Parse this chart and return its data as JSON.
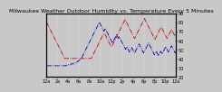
{
  "title": "Milwaukee Weather Outdoor Humidity vs. Temperature Every 5 Minutes",
  "bg_color": "#c8c8c8",
  "plot_bg": "#c8c8c8",
  "grid_color": "#ffffff",
  "humidity_color": "#0000bb",
  "temp_color": "#cc0000",
  "xlim": [
    0,
    288
  ],
  "temp_ylim": [
    20,
    90
  ],
  "hum_ylim": [
    20,
    90
  ],
  "temp_data": [
    80,
    79,
    78,
    77,
    76,
    75,
    74,
    73,
    72,
    71,
    70,
    69,
    68,
    67,
    66,
    65,
    64,
    63,
    62,
    61,
    60,
    59,
    58,
    57,
    56,
    55,
    54,
    53,
    52,
    51,
    50,
    49,
    48,
    47,
    46,
    45,
    44,
    43,
    42,
    41,
    40,
    40,
    40,
    40,
    40,
    40,
    40,
    40,
    40,
    40,
    40,
    40,
    40,
    40,
    40,
    40,
    40,
    40,
    40,
    40,
    40,
    40,
    40,
    40,
    40,
    40,
    40,
    40,
    40,
    40,
    40,
    40,
    40,
    40,
    40,
    40,
    40,
    40,
    40,
    40,
    40,
    40,
    40,
    40,
    40,
    40,
    40,
    40,
    40,
    40,
    40,
    40,
    40,
    40,
    40,
    40,
    40,
    40,
    40,
    40,
    41,
    42,
    43,
    44,
    45,
    46,
    47,
    48,
    49,
    50,
    51,
    52,
    53,
    54,
    55,
    56,
    57,
    58,
    59,
    60,
    61,
    62,
    63,
    64,
    65,
    66,
    67,
    67,
    67,
    67,
    66,
    65,
    64,
    63,
    62,
    61,
    60,
    59,
    58,
    57,
    56,
    55,
    54,
    53,
    53,
    54,
    55,
    56,
    57,
    58,
    59,
    60,
    61,
    62,
    63,
    64,
    65,
    66,
    67,
    68,
    69,
    70,
    71,
    72,
    73,
    74,
    75,
    76,
    77,
    78,
    79,
    80,
    81,
    82,
    83,
    82,
    81,
    80,
    79,
    78,
    77,
    76,
    75,
    74,
    73,
    72,
    71,
    70,
    69,
    68,
    67,
    66,
    65,
    64,
    63,
    62,
    63,
    64,
    65,
    66,
    67,
    68,
    69,
    70,
    71,
    72,
    73,
    74,
    75,
    76,
    77,
    78,
    79,
    80,
    81,
    82,
    83,
    84,
    83,
    82,
    81,
    80,
    79,
    78,
    77,
    76,
    75,
    74,
    73,
    72,
    71,
    70,
    69,
    68,
    67,
    66,
    65,
    64,
    63,
    62,
    61,
    62,
    63,
    64,
    65,
    66,
    67,
    68,
    69,
    70,
    71,
    72,
    73,
    74,
    75,
    74,
    73,
    72,
    71,
    70,
    69,
    68,
    67,
    66,
    65,
    64,
    63,
    62,
    63,
    64,
    65,
    66,
    67,
    68,
    69,
    70,
    71,
    72,
    71,
    70,
    69,
    68,
    67,
    66,
    65,
    66,
    67,
    68
  ],
  "humidity_data": [
    32,
    32,
    32,
    32,
    32,
    32,
    32,
    32,
    32,
    32,
    32,
    32,
    32,
    32,
    32,
    32,
    32,
    32,
    32,
    32,
    32,
    32,
    32,
    32,
    32,
    32,
    32,
    32,
    32,
    32,
    32,
    32,
    32,
    32,
    32,
    32,
    32,
    32,
    32,
    32,
    32,
    32,
    32,
    32,
    32,
    33,
    33,
    33,
    33,
    33,
    33,
    33,
    33,
    33,
    34,
    34,
    34,
    34,
    34,
    34,
    35,
    35,
    35,
    35,
    35,
    36,
    36,
    36,
    36,
    37,
    37,
    37,
    38,
    38,
    39,
    39,
    40,
    40,
    41,
    42,
    43,
    44,
    45,
    46,
    47,
    48,
    49,
    50,
    51,
    52,
    53,
    54,
    55,
    56,
    57,
    58,
    59,
    60,
    61,
    62,
    63,
    64,
    65,
    66,
    67,
    68,
    69,
    70,
    71,
    72,
    73,
    74,
    75,
    76,
    77,
    78,
    79,
    80,
    79,
    78,
    77,
    76,
    75,
    74,
    73,
    72,
    71,
    70,
    71,
    72,
    73,
    72,
    71,
    70,
    69,
    68,
    67,
    66,
    65,
    64,
    63,
    62,
    61,
    60,
    59,
    58,
    57,
    58,
    59,
    60,
    61,
    62,
    63,
    64,
    65,
    66,
    65,
    64,
    63,
    62,
    63,
    64,
    63,
    62,
    61,
    60,
    59,
    58,
    57,
    56,
    55,
    54,
    53,
    52,
    51,
    50,
    51,
    52,
    53,
    52,
    51,
    50,
    49,
    48,
    47,
    48,
    49,
    50,
    51,
    52,
    51,
    50,
    49,
    48,
    47,
    46,
    47,
    48,
    49,
    50,
    51,
    52,
    53,
    54,
    55,
    56,
    55,
    54,
    53,
    52,
    51,
    50,
    49,
    48,
    47,
    46,
    47,
    48,
    49,
    50,
    51,
    52,
    53,
    54,
    55,
    56,
    57,
    56,
    55,
    54,
    53,
    52,
    51,
    50,
    49,
    48,
    47,
    46,
    45,
    44,
    45,
    46,
    47,
    48,
    47,
    46,
    45,
    44,
    43,
    44,
    45,
    46,
    47,
    48,
    47,
    46,
    45,
    46,
    47,
    48,
    49,
    50,
    51,
    52,
    53,
    52,
    51,
    50,
    49,
    48,
    47,
    48,
    49,
    50,
    51,
    52,
    53,
    54,
    53,
    52,
    51,
    50,
    49,
    48,
    47,
    46,
    47,
    46
  ],
  "xtick_positions": [
    0,
    24,
    48,
    72,
    96,
    120,
    144,
    168,
    192,
    216,
    240,
    264,
    288
  ],
  "xtick_labels": [
    "12a",
    "2a",
    "4a",
    "6a",
    "8a",
    "10a",
    "12p",
    "2p",
    "4p",
    "6p",
    "8p",
    "10p",
    "12a"
  ],
  "yticks": [
    20,
    30,
    40,
    50,
    60,
    70,
    80,
    90
  ],
  "title_fontsize": 4.5,
  "tick_fontsize": 3.5,
  "linewidth": 0.6
}
